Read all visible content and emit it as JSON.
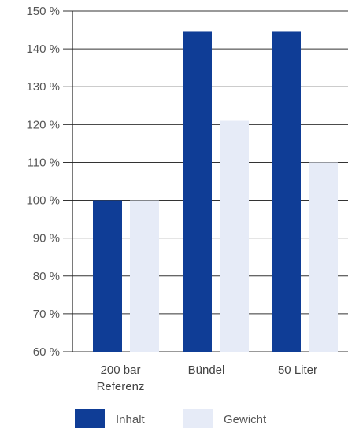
{
  "chart_data": {
    "type": "bar",
    "categories": [
      [
        "200 bar",
        "Referenz"
      ],
      [
        "Bündel"
      ],
      [
        "50 Liter"
      ]
    ],
    "series": [
      {
        "name": "Inhalt",
        "values": [
          100,
          144.5,
          144.5
        ],
        "color": "#0f3d96"
      },
      {
        "name": "Gewicht",
        "values": [
          100,
          121,
          110
        ],
        "color": "#e6ebf7"
      }
    ],
    "y_ticks": [
      "150 %",
      "140 %",
      "130 %",
      "120 %",
      "110 %",
      "100 %",
      "90 %",
      "80 %",
      "70 %",
      "60 %"
    ],
    "ylim": [
      60,
      150
    ],
    "grid": true,
    "legend_position": "bottom"
  }
}
